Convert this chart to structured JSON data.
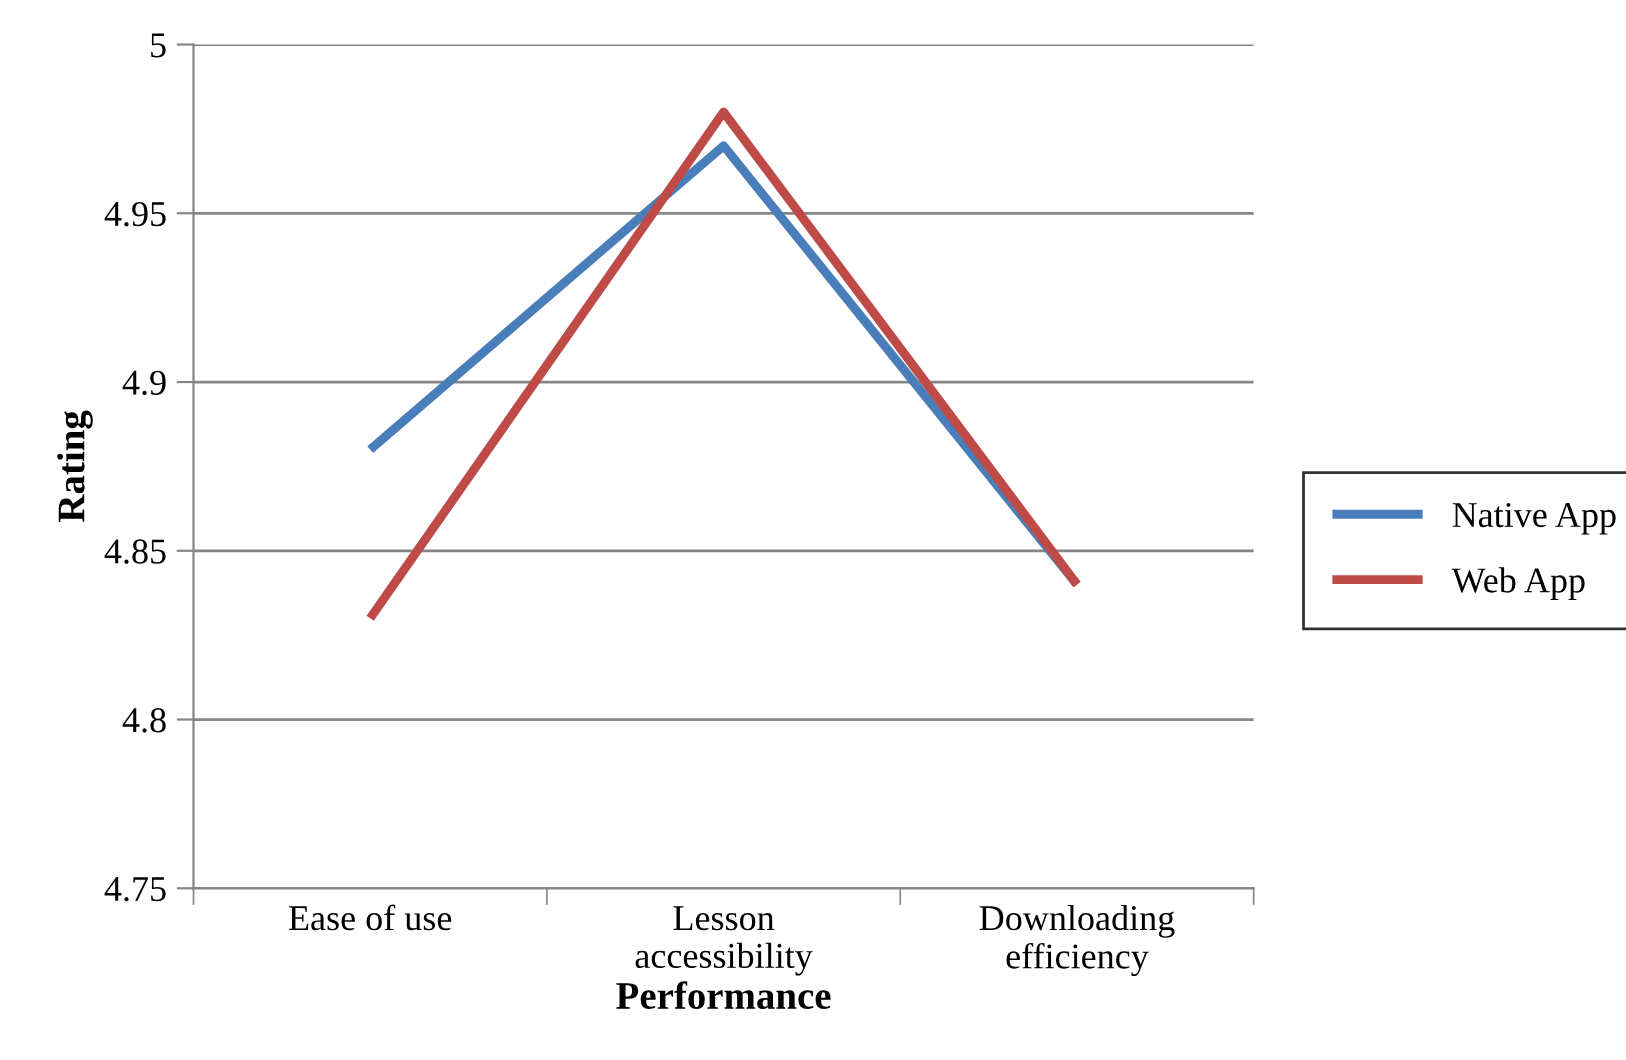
{
  "chart_data": {
    "type": "line",
    "xlabel": "Performance",
    "ylabel": "Rating",
    "categories": [
      "Ease of use",
      "Lesson\naccessibility",
      "Downloading\nefficiency"
    ],
    "series": [
      {
        "name": "Native App",
        "color": "#4a7ebb",
        "values": [
          4.88,
          4.97,
          4.84
        ]
      },
      {
        "name": "Web App",
        "color": "#be4b48",
        "values": [
          4.83,
          4.98,
          4.84
        ]
      }
    ],
    "ylim": [
      4.75,
      5
    ],
    "yticks": [
      4.75,
      4.8,
      4.85,
      4.9,
      4.95,
      5
    ],
    "grid": "y",
    "legend": "right",
    "marker": "none",
    "line_style": "solid"
  }
}
